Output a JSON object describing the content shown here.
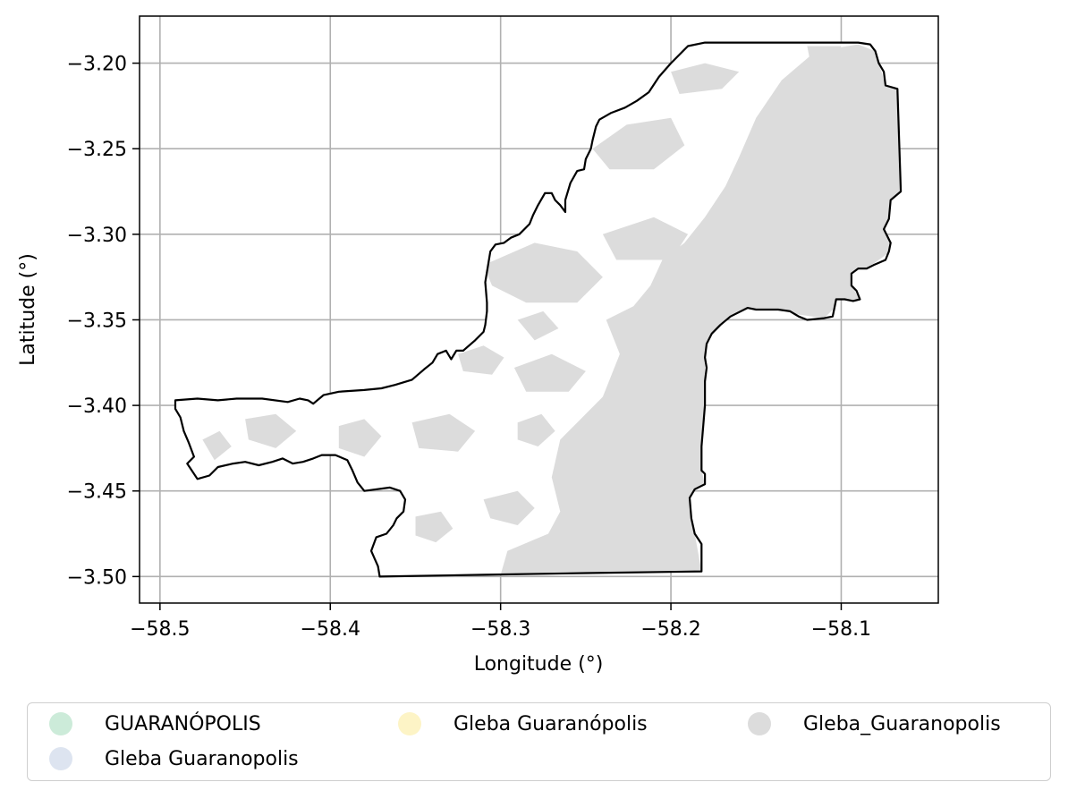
{
  "chart_data": {
    "type": "map",
    "title": "",
    "xlabel": "Longitude (°)",
    "ylabel": "Latitude (°)",
    "xlim": [
      -58.512,
      -58.043
    ],
    "ylim": [
      -3.5155,
      -3.1725
    ],
    "grid": true,
    "x_ticks": [
      -58.5,
      -58.4,
      -58.3,
      -58.2,
      -58.1
    ],
    "x_tick_labels": [
      "−58.5",
      "−58.4",
      "−58.3",
      "−58.2",
      "−58.1"
    ],
    "y_ticks": [
      -3.2,
      -3.25,
      -3.3,
      -3.35,
      -3.4,
      -3.45,
      -3.5
    ],
    "y_tick_labels": [
      "−3.20",
      "−3.25",
      "−3.30",
      "−3.35",
      "−3.40",
      "−3.45",
      "−3.50"
    ],
    "legend_position": "bottom-outside",
    "legend": [
      {
        "label": "GUARANÓPOLIS",
        "color": "#ccebd9"
      },
      {
        "label": "Gleba Guaranopolis",
        "color": "#dde4f0"
      },
      {
        "label": "Gleba Guaranópolis",
        "color": "#fdf4c6"
      },
      {
        "label": "Gleba_Guaranopolis",
        "color": "#dcdcdc"
      }
    ],
    "boundary": {
      "stroke": "#000000",
      "fill": "#ffffff",
      "coords": [
        [
          -58.491,
          -3.397
        ],
        [
          -58.478,
          -3.396
        ],
        [
          -58.466,
          -3.397
        ],
        [
          -58.455,
          -3.396
        ],
        [
          -58.44,
          -3.396
        ],
        [
          -58.425,
          -3.398
        ],
        [
          -58.418,
          -3.396
        ],
        [
          -58.413,
          -3.397
        ],
        [
          -58.41,
          -3.399
        ],
        [
          -58.404,
          -3.394
        ],
        [
          -58.395,
          -3.392
        ],
        [
          -58.38,
          -3.391
        ],
        [
          -58.37,
          -3.39
        ],
        [
          -58.362,
          -3.388
        ],
        [
          -58.352,
          -3.385
        ],
        [
          -58.345,
          -3.379
        ],
        [
          -58.34,
          -3.375
        ],
        [
          -58.337,
          -3.37
        ],
        [
          -58.332,
          -3.368
        ],
        [
          -58.329,
          -3.373
        ],
        [
          -58.326,
          -3.368
        ],
        [
          -58.322,
          -3.368
        ],
        [
          -58.315,
          -3.362
        ],
        [
          -58.31,
          -3.357
        ],
        [
          -58.309,
          -3.353
        ],
        [
          -58.308,
          -3.345
        ],
        [
          -58.308,
          -3.34
        ],
        [
          -58.309,
          -3.328
        ],
        [
          -58.308,
          -3.322
        ],
        [
          -58.306,
          -3.31
        ],
        [
          -58.303,
          -3.306
        ],
        [
          -58.298,
          -3.305
        ],
        [
          -58.294,
          -3.302
        ],
        [
          -58.289,
          -3.3
        ],
        [
          -58.283,
          -3.294
        ],
        [
          -58.281,
          -3.289
        ],
        [
          -58.278,
          -3.283
        ],
        [
          -58.274,
          -3.276
        ],
        [
          -58.27,
          -3.276
        ],
        [
          -58.268,
          -3.28
        ],
        [
          -58.265,
          -3.283
        ],
        [
          -58.262,
          -3.287
        ],
        [
          -58.262,
          -3.28
        ],
        [
          -58.259,
          -3.27
        ],
        [
          -58.255,
          -3.263
        ],
        [
          -58.251,
          -3.262
        ],
        [
          -58.25,
          -3.256
        ],
        [
          -58.247,
          -3.25
        ],
        [
          -58.246,
          -3.245
        ],
        [
          -58.244,
          -3.237
        ],
        [
          -58.242,
          -3.233
        ],
        [
          -58.235,
          -3.229
        ],
        [
          -58.227,
          -3.226
        ],
        [
          -58.22,
          -3.222
        ],
        [
          -58.213,
          -3.217
        ],
        [
          -58.207,
          -3.208
        ],
        [
          -58.2,
          -3.2
        ],
        [
          -58.194,
          -3.194
        ],
        [
          -58.19,
          -3.19
        ],
        [
          -58.18,
          -3.188
        ],
        [
          -58.165,
          -3.188
        ],
        [
          -58.145,
          -3.188
        ],
        [
          -58.125,
          -3.188
        ],
        [
          -58.105,
          -3.188
        ],
        [
          -58.09,
          -3.188
        ],
        [
          -58.083,
          -3.189
        ],
        [
          -58.08,
          -3.193
        ],
        [
          -58.078,
          -3.2
        ],
        [
          -58.075,
          -3.205
        ],
        [
          -58.074,
          -3.213
        ],
        [
          -58.067,
          -3.215
        ],
        [
          -58.066,
          -3.245
        ],
        [
          -58.065,
          -3.275
        ],
        [
          -58.071,
          -3.28
        ],
        [
          -58.072,
          -3.291
        ],
        [
          -58.075,
          -3.297
        ],
        [
          -58.071,
          -3.305
        ],
        [
          -58.072,
          -3.31
        ],
        [
          -58.074,
          -3.315
        ],
        [
          -58.081,
          -3.318
        ],
        [
          -58.085,
          -3.32
        ],
        [
          -58.09,
          -3.32
        ],
        [
          -58.094,
          -3.323
        ],
        [
          -58.094,
          -3.33
        ],
        [
          -58.091,
          -3.333
        ],
        [
          -58.089,
          -3.338
        ],
        [
          -58.093,
          -3.339
        ],
        [
          -58.098,
          -3.338
        ],
        [
          -58.103,
          -3.338
        ],
        [
          -58.104,
          -3.343
        ],
        [
          -58.105,
          -3.348
        ],
        [
          -58.11,
          -3.349
        ],
        [
          -58.12,
          -3.35
        ],
        [
          -58.125,
          -3.348
        ],
        [
          -58.13,
          -3.345
        ],
        [
          -58.137,
          -3.344
        ],
        [
          -58.146,
          -3.344
        ],
        [
          -58.15,
          -3.344
        ],
        [
          -58.155,
          -3.343
        ],
        [
          -58.165,
          -3.348
        ],
        [
          -58.171,
          -3.353
        ],
        [
          -58.176,
          -3.358
        ],
        [
          -58.179,
          -3.364
        ],
        [
          -58.18,
          -3.372
        ],
        [
          -58.179,
          -3.378
        ],
        [
          -58.18,
          -3.386
        ],
        [
          -58.18,
          -3.4
        ],
        [
          -58.181,
          -3.412
        ],
        [
          -58.182,
          -3.424
        ],
        [
          -58.182,
          -3.438
        ],
        [
          -58.18,
          -3.44
        ],
        [
          -58.18,
          -3.446
        ],
        [
          -58.186,
          -3.449
        ],
        [
          -58.189,
          -3.454
        ],
        [
          -58.188,
          -3.466
        ],
        [
          -58.186,
          -3.475
        ],
        [
          -58.182,
          -3.481
        ],
        [
          -58.182,
          -3.497
        ],
        [
          -58.25,
          -3.498
        ],
        [
          -58.31,
          -3.499
        ],
        [
          -58.371,
          -3.5
        ],
        [
          -58.372,
          -3.494
        ],
        [
          -58.376,
          -3.485
        ],
        [
          -58.373,
          -3.477
        ],
        [
          -58.367,
          -3.475
        ],
        [
          -58.363,
          -3.47
        ],
        [
          -58.361,
          -3.466
        ],
        [
          -58.357,
          -3.462
        ],
        [
          -58.356,
          -3.455
        ],
        [
          -58.359,
          -3.45
        ],
        [
          -58.365,
          -3.448
        ],
        [
          -58.38,
          -3.45
        ],
        [
          -58.384,
          -3.445
        ],
        [
          -58.387,
          -3.438
        ],
        [
          -58.39,
          -3.432
        ],
        [
          -58.397,
          -3.429
        ],
        [
          -58.405,
          -3.429
        ],
        [
          -58.41,
          -3.431
        ],
        [
          -58.416,
          -3.433
        ],
        [
          -58.422,
          -3.434
        ],
        [
          -58.428,
          -3.431
        ],
        [
          -58.434,
          -3.433
        ],
        [
          -58.442,
          -3.435
        ],
        [
          -58.45,
          -3.433
        ],
        [
          -58.457,
          -3.434
        ],
        [
          -58.466,
          -3.436
        ],
        [
          -58.471,
          -3.441
        ],
        [
          -58.478,
          -3.443
        ],
        [
          -58.484,
          -3.434
        ],
        [
          -58.48,
          -3.43
        ],
        [
          -58.483,
          -3.422
        ],
        [
          -58.486,
          -3.415
        ],
        [
          -58.488,
          -3.407
        ],
        [
          -58.491,
          -3.402
        ]
      ]
    },
    "coverage_color": "#dcdcdc",
    "coverage_polygons": [
      [
        [
          -58.238,
          -3.35
        ],
        [
          -58.222,
          -3.342
        ],
        [
          -58.212,
          -3.33
        ],
        [
          -58.205,
          -3.315
        ],
        [
          -58.192,
          -3.305
        ],
        [
          -58.18,
          -3.29
        ],
        [
          -58.168,
          -3.272
        ],
        [
          -58.16,
          -3.255
        ],
        [
          -58.15,
          -3.232
        ],
        [
          -58.135,
          -3.21
        ],
        [
          -58.115,
          -3.193
        ],
        [
          -58.09,
          -3.189
        ],
        [
          -58.08,
          -3.193
        ],
        [
          -58.074,
          -3.213
        ],
        [
          -58.067,
          -3.215
        ],
        [
          -58.065,
          -3.275
        ],
        [
          -58.072,
          -3.291
        ],
        [
          -58.071,
          -3.31
        ],
        [
          -58.085,
          -3.32
        ],
        [
          -58.094,
          -3.33
        ],
        [
          -58.089,
          -3.338
        ],
        [
          -58.104,
          -3.343
        ],
        [
          -58.11,
          -3.349
        ],
        [
          -58.146,
          -3.344
        ],
        [
          -58.165,
          -3.348
        ],
        [
          -58.176,
          -3.358
        ],
        [
          -58.18,
          -3.372
        ],
        [
          -58.18,
          -3.4
        ],
        [
          -58.182,
          -3.438
        ],
        [
          -58.18,
          -3.446
        ],
        [
          -58.189,
          -3.454
        ],
        [
          -58.186,
          -3.475
        ],
        [
          -58.182,
          -3.497
        ],
        [
          -58.25,
          -3.498
        ],
        [
          -58.3,
          -3.499
        ],
        [
          -58.296,
          -3.485
        ],
        [
          -58.272,
          -3.475
        ],
        [
          -58.265,
          -3.462
        ],
        [
          -58.27,
          -3.442
        ],
        [
          -58.265,
          -3.42
        ],
        [
          -58.24,
          -3.395
        ],
        [
          -58.23,
          -3.37
        ]
      ],
      [
        [
          -58.246,
          -3.25
        ],
        [
          -58.226,
          -3.236
        ],
        [
          -58.2,
          -3.232
        ],
        [
          -58.192,
          -3.248
        ],
        [
          -58.21,
          -3.262
        ],
        [
          -58.236,
          -3.262
        ]
      ],
      [
        [
          -58.2,
          -3.205
        ],
        [
          -58.18,
          -3.2
        ],
        [
          -58.16,
          -3.205
        ],
        [
          -58.17,
          -3.215
        ],
        [
          -58.195,
          -3.218
        ]
      ],
      [
        [
          -58.12,
          -3.19
        ],
        [
          -58.1,
          -3.19
        ],
        [
          -58.105,
          -3.2
        ],
        [
          -58.118,
          -3.2
        ]
      ],
      [
        [
          -58.31,
          -3.318
        ],
        [
          -58.28,
          -3.305
        ],
        [
          -58.255,
          -3.31
        ],
        [
          -58.24,
          -3.325
        ],
        [
          -58.255,
          -3.34
        ],
        [
          -58.285,
          -3.34
        ],
        [
          -58.305,
          -3.33
        ]
      ],
      [
        [
          -58.24,
          -3.3
        ],
        [
          -58.21,
          -3.29
        ],
        [
          -58.19,
          -3.3
        ],
        [
          -58.2,
          -3.315
        ],
        [
          -58.232,
          -3.315
        ]
      ],
      [
        [
          -58.292,
          -3.378
        ],
        [
          -58.27,
          -3.37
        ],
        [
          -58.25,
          -3.38
        ],
        [
          -58.26,
          -3.392
        ],
        [
          -58.285,
          -3.392
        ]
      ],
      [
        [
          -58.325,
          -3.37
        ],
        [
          -58.31,
          -3.365
        ],
        [
          -58.298,
          -3.372
        ],
        [
          -58.305,
          -3.382
        ],
        [
          -58.322,
          -3.38
        ]
      ],
      [
        [
          -58.352,
          -3.41
        ],
        [
          -58.33,
          -3.405
        ],
        [
          -58.315,
          -3.415
        ],
        [
          -58.325,
          -3.427
        ],
        [
          -58.348,
          -3.425
        ]
      ],
      [
        [
          -58.24,
          -3.418
        ],
        [
          -58.22,
          -3.41
        ],
        [
          -58.205,
          -3.42
        ],
        [
          -58.212,
          -3.435
        ],
        [
          -58.235,
          -3.432
        ]
      ],
      [
        [
          -58.395,
          -3.412
        ],
        [
          -58.38,
          -3.408
        ],
        [
          -58.37,
          -3.418
        ],
        [
          -58.38,
          -3.43
        ],
        [
          -58.395,
          -3.425
        ]
      ],
      [
        [
          -58.45,
          -3.408
        ],
        [
          -58.432,
          -3.405
        ],
        [
          -58.42,
          -3.415
        ],
        [
          -58.432,
          -3.425
        ],
        [
          -58.448,
          -3.42
        ]
      ],
      [
        [
          -58.31,
          -3.455
        ],
        [
          -58.29,
          -3.45
        ],
        [
          -58.28,
          -3.46
        ],
        [
          -58.29,
          -3.47
        ],
        [
          -58.306,
          -3.466
        ]
      ],
      [
        [
          -58.35,
          -3.465
        ],
        [
          -58.335,
          -3.462
        ],
        [
          -58.328,
          -3.472
        ],
        [
          -58.338,
          -3.48
        ],
        [
          -58.35,
          -3.476
        ]
      ],
      [
        [
          -58.29,
          -3.41
        ],
        [
          -58.276,
          -3.405
        ],
        [
          -58.268,
          -3.415
        ],
        [
          -58.278,
          -3.424
        ],
        [
          -58.29,
          -3.42
        ]
      ],
      [
        [
          -58.475,
          -3.42
        ],
        [
          -58.465,
          -3.415
        ],
        [
          -58.458,
          -3.424
        ],
        [
          -58.468,
          -3.432
        ]
      ],
      [
        [
          -58.29,
          -3.35
        ],
        [
          -58.275,
          -3.345
        ],
        [
          -58.266,
          -3.355
        ],
        [
          -58.28,
          -3.362
        ]
      ]
    ]
  }
}
